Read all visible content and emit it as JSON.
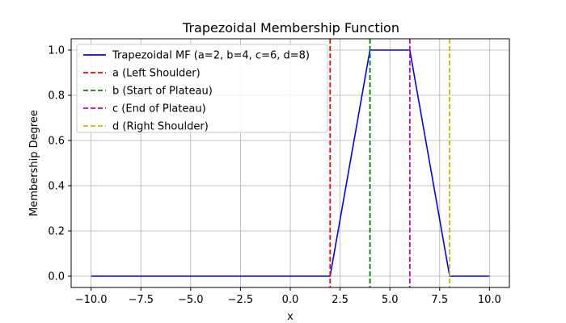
{
  "chart_data": {
    "type": "line",
    "title": "Trapezoidal Membership Function",
    "xlabel": "x",
    "ylabel": "Membership Degree",
    "xlim": [
      -11,
      11
    ],
    "ylim": [
      -0.05,
      1.05
    ],
    "xticks": [
      -10.0,
      -7.5,
      -5.0,
      -2.5,
      0.0,
      2.5,
      5.0,
      7.5,
      10.0
    ],
    "xtick_labels": [
      "−10.0",
      "−7.5",
      "−5.0",
      "−2.5",
      "0.0",
      "2.5",
      "5.0",
      "7.5",
      "10.0"
    ],
    "yticks": [
      0.0,
      0.2,
      0.4,
      0.6,
      0.8,
      1.0
    ],
    "ytick_labels": [
      "0.0",
      "0.2",
      "0.4",
      "0.6",
      "0.8",
      "1.0"
    ],
    "grid": true,
    "legend_position": "top-left",
    "series": [
      {
        "name": "Trapezoidal MF (a=2, b=4, c=6, d=8)",
        "color": "#0000ff",
        "style": "solid",
        "x": [
          -10,
          2,
          4,
          6,
          8,
          10
        ],
        "y": [
          0,
          0,
          1,
          1,
          0,
          0
        ]
      }
    ],
    "vlines": [
      {
        "name": "a (Left Shoulder)",
        "x": 2,
        "color": "#ff0000",
        "style": "dashed"
      },
      {
        "name": "b (Start of Plateau)",
        "x": 4,
        "color": "#008000",
        "style": "dashed"
      },
      {
        "name": "c (End of Plateau)",
        "x": 6,
        "color": "#bf00bf",
        "style": "dashed"
      },
      {
        "name": "d (Right Shoulder)",
        "x": 8,
        "color": "#bfbf00",
        "style": "dashed"
      }
    ]
  }
}
